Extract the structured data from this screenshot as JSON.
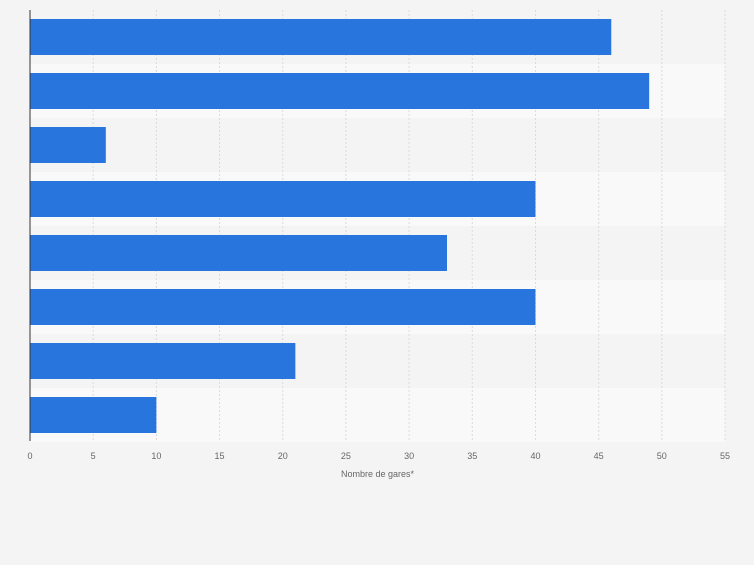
{
  "chart_data": {
    "type": "bar",
    "orientation": "horizontal",
    "title": "",
    "categories": [
      "",
      "",
      "",
      "",
      "",
      "",
      "",
      ""
    ],
    "values": [
      46,
      49,
      6,
      40,
      33,
      40,
      21,
      10
    ],
    "xlabel": "Nombre de gares*",
    "ylabel": "",
    "xlim": [
      0,
      55
    ],
    "xticks": [
      0,
      5,
      10,
      15,
      20,
      25,
      30,
      35,
      40,
      45,
      50,
      55
    ],
    "grid": true,
    "legend": "none"
  },
  "colors": {
    "bar": "#2876dd",
    "band_light": "#f9f9f9",
    "band_dark": "#f4f4f4",
    "grid": "#dadada",
    "axis": "#333333",
    "tick_text": "#666666"
  }
}
